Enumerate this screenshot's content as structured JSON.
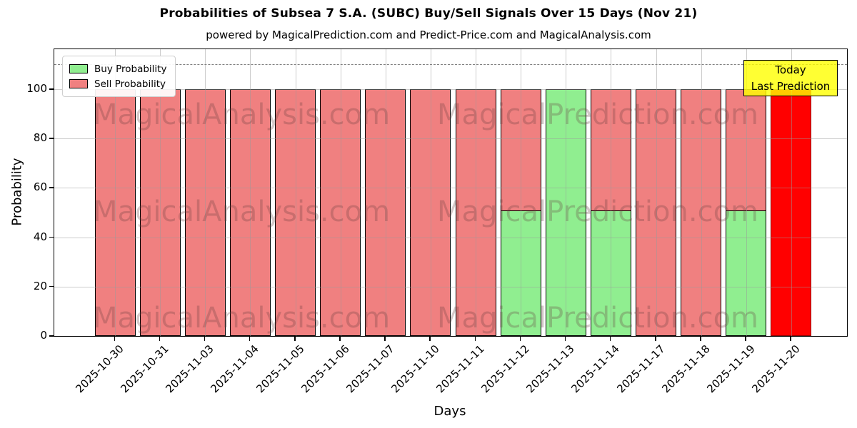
{
  "chart": {
    "title": "Probabilities of Subsea 7 S.A. (SUBC) Buy/Sell Signals Over 15 Days (Nov 21)",
    "subtitle": "powered by MagicalPrediction.com and Predict-Price.com and MagicalAnalysis.com",
    "xlabel": "Days",
    "ylabel": "Probability",
    "legend": {
      "items": [
        {
          "label": "Buy Probability",
          "color": "#90ee90"
        },
        {
          "label": "Sell Probability",
          "color": "#f08080"
        }
      ]
    },
    "annotation": {
      "line1": "Today",
      "line2": "Last Prediction",
      "bg_color": "#ffff00",
      "border_color": "#000000"
    },
    "watermark_left": "MagicalAnalysis.com",
    "watermark_right": "MagicalPrediction.com",
    "ytick_labels": [
      "0",
      "20",
      "40",
      "60",
      "80",
      "100"
    ]
  },
  "chart_data": {
    "type": "bar",
    "stacked": true,
    "title": "Probabilities of Subsea 7 S.A. (SUBC) Buy/Sell Signals Over 15 Days (Nov 21)",
    "subtitle": "powered by MagicalPrediction.com and Predict-Price.com and MagicalAnalysis.com",
    "xlabel": "Days",
    "ylabel": "Probability",
    "ylim": [
      0,
      116
    ],
    "yticks": [
      0,
      20,
      40,
      60,
      80,
      100
    ],
    "grid": true,
    "legend_position": "upper left",
    "dashed_guide_y": 110,
    "categories": [
      "2025-10-30",
      "2025-10-31",
      "2025-11-03",
      "2025-11-04",
      "2025-11-05",
      "2025-11-06",
      "2025-11-07",
      "2025-11-10",
      "2025-11-11",
      "2025-11-12",
      "2025-11-13",
      "2025-11-14",
      "2025-11-17",
      "2025-11-18",
      "2025-11-19",
      "2025-11-20"
    ],
    "series": [
      {
        "name": "Buy Probability",
        "color": "#90ee90",
        "values": [
          0,
          0,
          0,
          0,
          0,
          0,
          0,
          0,
          0,
          51,
          100,
          51,
          0,
          0,
          51,
          0
        ]
      },
      {
        "name": "Sell Probability",
        "color": "#f08080",
        "values": [
          100,
          100,
          100,
          100,
          100,
          100,
          100,
          100,
          100,
          49,
          0,
          49,
          100,
          100,
          49,
          100
        ]
      }
    ],
    "highlight_bar": {
      "category": "2025-11-20",
      "color": "#ff0000",
      "edge_color": "#8b0000",
      "value": 100,
      "note": "Today Last Prediction"
    }
  }
}
